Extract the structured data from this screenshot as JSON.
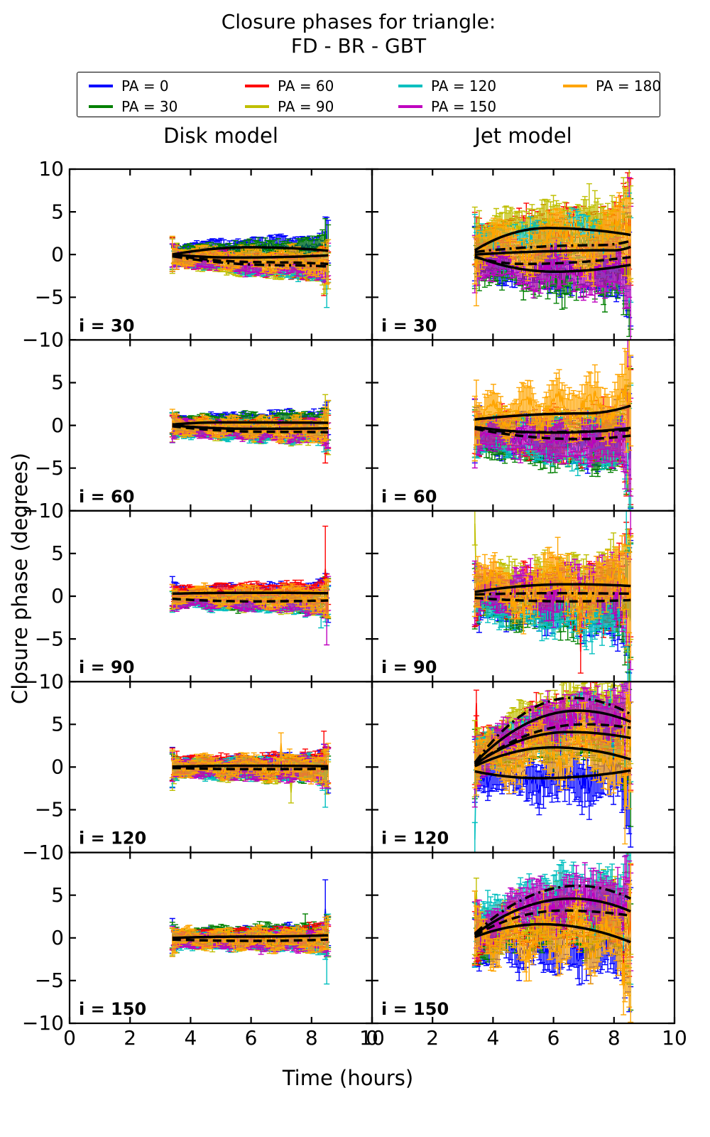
{
  "figure": {
    "title_line1": "Closure phases for triangle:",
    "title_line2": "FD - BR - GBT",
    "xlabel": "Time (hours)",
    "ylabel": "Closure phase (degrees)",
    "background": "#ffffff",
    "axis_color": "#000000"
  },
  "legend": {
    "items": [
      {
        "label": "PA = 0",
        "color": "#0000ff"
      },
      {
        "label": "PA = 30",
        "color": "#008000"
      },
      {
        "label": "PA = 60",
        "color": "#ff0000"
      },
      {
        "label": "PA = 90",
        "color": "#bfbf00"
      },
      {
        "label": "PA = 120",
        "color": "#00bfbf"
      },
      {
        "label": "PA = 150",
        "color": "#bf00bf"
      },
      {
        "label": "PA = 180",
        "color": "#ffa500"
      }
    ]
  },
  "chart_data": {
    "type": "line",
    "title": "Closure phases for triangle: FD - BR - GBT",
    "xlabel": "Time (hours)",
    "ylabel": "Closure phase (degrees)",
    "columns": [
      "Disk model",
      "Jet model"
    ],
    "rows": [
      "i = 30",
      "i = 60",
      "i = 90",
      "i = 120",
      "i = 150"
    ],
    "xlim": [
      0,
      10
    ],
    "ylim": [
      -10,
      10
    ],
    "x_ticks": [
      0,
      2,
      4,
      6,
      8,
      10
    ],
    "y_ticks": [
      10,
      5,
      0,
      -5,
      -10
    ],
    "x_tick_labels": [
      "0",
      "2",
      "4",
      "6",
      "8",
      "10"
    ],
    "y_tick_labels": [
      "10",
      "5",
      "0",
      "−5",
      "−10"
    ],
    "time_span_hours": [
      3.4,
      8.55
    ],
    "points_per_series": 110,
    "series_order": [
      "PA = 0",
      "PA = 30",
      "PA = 60",
      "PA = 90",
      "PA = 120",
      "PA = 150",
      "PA = 180"
    ],
    "series_colors": [
      "#0000ff",
      "#008000",
      "#ff0000",
      "#bfbf00",
      "#00bfbf",
      "#bf00bf",
      "#ffa500"
    ],
    "model_line_color": "#000000",
    "panels": [
      {
        "row": "i = 30",
        "column": "Disk model",
        "noise": 0.32,
        "errorbar": [
          0.7,
          1.1
        ],
        "tail_blowup": 2.5,
        "series_trends": [
          [
            0.2,
            1.0,
            0.2
          ],
          [
            0.1,
            0.5,
            0.2
          ],
          [
            -0.2,
            -1.6,
            -0.2
          ],
          [
            -0.3,
            -1.8,
            -0.3
          ],
          [
            -0.3,
            -1.6,
            -0.2
          ],
          [
            -0.3,
            -1.3,
            -0.3
          ],
          [
            0.0,
            -0.6,
            -0.2
          ]
        ],
        "spikes": [
          [
            2,
            8.42,
            -2.0,
            2.8
          ],
          [
            4,
            8.5,
            -3.0,
            3.2
          ],
          [
            0,
            8.45,
            2.2,
            2.2
          ],
          [
            1,
            8.47,
            2.8,
            1.4
          ],
          [
            3,
            8.4,
            -2.0,
            2.6
          ]
        ],
        "model_fits": [
          [
            0.0,
            0.85,
            6.0,
            0.45,
            "solid"
          ],
          [
            0.0,
            -0.35,
            5.5,
            -0.1,
            "solid"
          ],
          [
            -0.1,
            -0.9,
            6.5,
            -1.1,
            "dashed"
          ],
          [
            -0.2,
            -1.25,
            7.0,
            -1.4,
            "dashdot"
          ]
        ]
      },
      {
        "row": "i = 30",
        "column": "Jet model",
        "noise": 1.0,
        "errorbar": [
          1.5,
          2.6
        ],
        "tail_blowup": 4.0,
        "series_trends": [
          [
            -0.5,
            -1.6,
            -0.6
          ],
          [
            -1.0,
            -2.2,
            -0.6
          ],
          [
            1.5,
            2.6,
            0.6
          ],
          [
            2.0,
            3.2,
            0.9
          ],
          [
            0.5,
            0.8,
            0.6
          ],
          [
            -0.6,
            -1.6,
            -0.4
          ],
          [
            0.4,
            1.6,
            0.4
          ]
        ],
        "spikes": [
          [
            4,
            3.42,
            0.5,
            4.2
          ],
          [
            6,
            3.45,
            -1.5,
            4.5
          ],
          [
            3,
            8.3,
            5.0,
            4.0
          ],
          [
            5,
            8.5,
            2.0,
            7.0
          ]
        ],
        "model_fits": [
          [
            0.5,
            3.1,
            5.8,
            2.3,
            "solid"
          ],
          [
            0.3,
            1.1,
            7.5,
            1.6,
            "dashdot"
          ],
          [
            0.0,
            0.5,
            8.0,
            0.9,
            "solid"
          ],
          [
            -0.2,
            -2.0,
            6.0,
            -1.2,
            "solid"
          ],
          [
            -0.3,
            -1.1,
            5.0,
            -0.3,
            "dashed"
          ]
        ]
      },
      {
        "row": "i = 60",
        "column": "Disk model",
        "noise": 0.3,
        "errorbar": [
          0.7,
          1.0
        ],
        "tail_blowup": 2.5,
        "series_trends": [
          [
            0.2,
            0.5,
            0.1
          ],
          [
            0.1,
            0.4,
            0.1
          ],
          [
            -0.1,
            -0.7,
            -0.1
          ],
          [
            -0.2,
            -0.9,
            -0.2
          ],
          [
            -0.3,
            -0.9,
            -0.1
          ],
          [
            -0.2,
            -0.7,
            -0.1
          ],
          [
            0.0,
            -0.3,
            -0.1
          ]
        ],
        "spikes": [
          [
            2,
            8.45,
            -1.8,
            2.6
          ],
          [
            3,
            8.47,
            1.8,
            1.8
          ]
        ],
        "model_fits": [
          [
            0.1,
            0.35,
            5.0,
            0.3,
            "solid"
          ],
          [
            0.0,
            -0.4,
            6.0,
            -0.35,
            "solid"
          ],
          [
            -0.1,
            -0.75,
            6.5,
            -0.8,
            "dashed"
          ]
        ]
      },
      {
        "row": "i = 60",
        "column": "Jet model",
        "noise": 0.9,
        "errorbar": [
          1.4,
          2.6
        ],
        "tail_blowup": 4.5,
        "series_trends": [
          [
            -1.0,
            -1.6,
            -0.3
          ],
          [
            -1.5,
            -2.1,
            -0.5
          ],
          [
            -0.5,
            -1.1,
            -0.3
          ],
          [
            -0.4,
            -1.0,
            -0.2
          ],
          [
            -1.0,
            -1.9,
            -0.4
          ],
          [
            -0.6,
            -1.5,
            -0.4
          ],
          [
            1.0,
            2.3,
            0.4
          ]
        ],
        "spikes": [
          [
            6,
            3.45,
            1.5,
            3.8
          ],
          [
            5,
            8.45,
            4.0,
            6.0
          ],
          [
            4,
            8.5,
            -4.0,
            6.0
          ]
        ],
        "model_fits": [
          [
            0.7,
            1.4,
            7.0,
            2.3,
            "solid"
          ],
          [
            -0.2,
            -0.85,
            6.0,
            -0.3,
            "solid"
          ],
          [
            -0.4,
            -1.6,
            6.8,
            -1.2,
            "dashed"
          ],
          [
            -0.3,
            -0.8,
            5.0,
            -0.55,
            "dashdot"
          ]
        ]
      },
      {
        "row": "i = 90",
        "column": "Disk model",
        "noise": 0.3,
        "errorbar": [
          0.6,
          1.0
        ],
        "tail_blowup": 2.5,
        "series_trends": [
          [
            0.3,
            0.4,
            0.0
          ],
          [
            -0.3,
            -0.6,
            -0.1
          ],
          [
            0.3,
            0.5,
            0.1
          ],
          [
            -0.4,
            -0.8,
            -0.1
          ],
          [
            -0.5,
            -0.8,
            -0.1
          ],
          [
            -0.4,
            -0.7,
            -0.1
          ],
          [
            0.2,
            -0.2,
            0.0
          ]
        ],
        "spikes": [
          [
            2,
            8.45,
            3.2,
            5.0
          ],
          [
            4,
            8.3,
            -1.5,
            2.2
          ],
          [
            5,
            8.5,
            -2.5,
            3.2
          ]
        ],
        "model_fits": [
          [
            0.3,
            0.4,
            6.0,
            0.35,
            "solid"
          ],
          [
            -0.3,
            -0.6,
            6.0,
            -0.5,
            "dashed"
          ]
        ]
      },
      {
        "row": "i = 90",
        "column": "Jet model",
        "noise": 1.2,
        "errorbar": [
          1.5,
          2.8
        ],
        "tail_blowup": 4.5,
        "series_trends": [
          [
            -0.5,
            -1.2,
            -0.4
          ],
          [
            -0.5,
            -1.2,
            -0.3
          ],
          [
            0.3,
            0.4,
            0.1
          ],
          [
            0.8,
            1.6,
            0.4
          ],
          [
            -0.4,
            -1.8,
            -0.4
          ],
          [
            0.3,
            0.6,
            0.2
          ],
          [
            0.5,
            0.9,
            0.3
          ]
        ],
        "spikes": [
          [
            3,
            3.42,
            8.5,
            2.5
          ],
          [
            2,
            6.9,
            -6.5,
            2.5
          ],
          [
            4,
            8.4,
            5.0,
            5.0
          ]
        ],
        "model_fits": [
          [
            0.5,
            1.4,
            6.5,
            1.2,
            "solid"
          ],
          [
            0.2,
            0.35,
            6.0,
            0.3,
            "dashdot"
          ],
          [
            -0.2,
            -0.6,
            6.5,
            -0.45,
            "dashed"
          ]
        ]
      },
      {
        "row": "i = 120",
        "column": "Disk model",
        "noise": 0.35,
        "errorbar": [
          0.8,
          1.1
        ],
        "tail_blowup": 2.5,
        "series_trends": [
          [
            0.1,
            0.2,
            0.0
          ],
          [
            -0.1,
            -0.3,
            0.0
          ],
          [
            0.2,
            0.3,
            0.0
          ],
          [
            -0.2,
            -0.4,
            -0.1
          ],
          [
            -0.2,
            -0.3,
            0.0
          ],
          [
            -0.1,
            -0.3,
            -0.1
          ],
          [
            0.1,
            0.0,
            0.0
          ]
        ],
        "spikes": [
          [
            6,
            7.0,
            2.8,
            1.2
          ],
          [
            3,
            7.3,
            -3.0,
            1.2
          ],
          [
            4,
            8.45,
            -2.5,
            2.2
          ],
          [
            2,
            8.4,
            1.8,
            2.4
          ]
        ],
        "model_fits": [
          [
            0.05,
            0.15,
            6.0,
            0.1,
            "solid"
          ],
          [
            -0.1,
            -0.25,
            6.0,
            -0.2,
            "dashed"
          ]
        ]
      },
      {
        "row": "i = 120",
        "column": "Jet model",
        "noise": 1.1,
        "errorbar": [
          1.5,
          2.8
        ],
        "tail_blowup": 4.5,
        "series_trends": [
          [
            -0.6,
            -0.6,
            -0.6
          ],
          [
            0.5,
            3.2,
            1.6
          ],
          [
            1.0,
            5.6,
            2.1
          ],
          [
            1.5,
            6.2,
            2.3
          ],
          [
            0.5,
            4.6,
            2.0
          ],
          [
            0.5,
            5.2,
            2.2
          ],
          [
            0.0,
            1.2,
            1.3
          ]
        ],
        "spikes": [
          [
            2,
            3.45,
            7.5,
            1.5
          ],
          [
            4,
            3.42,
            -8.5,
            2.0
          ],
          [
            6,
            8.35,
            -5.0,
            4.0
          ]
        ],
        "model_fits": [
          [
            0.5,
            8.1,
            6.6,
            6.2,
            "dashdot"
          ],
          [
            0.5,
            6.6,
            6.8,
            5.3,
            "solid"
          ],
          [
            0.3,
            5.0,
            7.0,
            4.6,
            "dashed"
          ],
          [
            0.3,
            4.1,
            6.5,
            3.4,
            "solid"
          ],
          [
            0.1,
            2.3,
            6.0,
            0.9,
            "solid"
          ],
          [
            -0.5,
            -1.3,
            5.5,
            -0.4,
            "solid"
          ]
        ]
      },
      {
        "row": "i = 150",
        "column": "Disk model",
        "noise": 0.32,
        "errorbar": [
          0.7,
          1.0
        ],
        "tail_blowup": 2.5,
        "series_trends": [
          [
            0.0,
            0.3,
            0.0
          ],
          [
            0.1,
            0.4,
            0.1
          ],
          [
            -0.1,
            0.2,
            0.0
          ],
          [
            -0.2,
            -0.2,
            -0.1
          ],
          [
            -0.2,
            -0.4,
            -0.1
          ],
          [
            -0.2,
            -0.3,
            -0.1
          ],
          [
            0.0,
            -0.2,
            0.0
          ]
        ],
        "spikes": [
          [
            0,
            8.45,
            3.4,
            3.4
          ],
          [
            4,
            8.48,
            -2.4,
            3.0
          ],
          [
            1,
            7.8,
            1.8,
            1.0
          ]
        ],
        "model_fits": [
          [
            0.0,
            0.15,
            6.0,
            0.3,
            "solid"
          ],
          [
            -0.2,
            -0.35,
            6.0,
            -0.2,
            "dashed"
          ]
        ]
      },
      {
        "row": "i = 150",
        "column": "Jet model",
        "noise": 1.2,
        "errorbar": [
          1.5,
          2.8
        ],
        "tail_blowup": 4.5,
        "series_trends": [
          [
            -0.5,
            -1.2,
            -0.3
          ],
          [
            0.0,
            1.4,
            0.8
          ],
          [
            0.5,
            2.4,
            1.2
          ],
          [
            0.5,
            2.6,
            1.5
          ],
          [
            1.0,
            4.2,
            2.4
          ],
          [
            0.8,
            3.6,
            2.0
          ],
          [
            -0.5,
            -0.6,
            0.6
          ]
        ],
        "spikes": [
          [
            3,
            3.45,
            5.5,
            1.5
          ],
          [
            6,
            8.3,
            -6.0,
            3.0
          ],
          [
            5,
            8.5,
            3.0,
            6.0
          ]
        ],
        "model_fits": [
          [
            0.5,
            6.1,
            6.8,
            4.6,
            "dashdot"
          ],
          [
            0.4,
            4.6,
            6.6,
            3.1,
            "solid"
          ],
          [
            0.3,
            3.2,
            6.3,
            2.6,
            "dashed"
          ],
          [
            0.1,
            1.6,
            5.6,
            -0.5,
            "solid"
          ]
        ]
      }
    ]
  }
}
